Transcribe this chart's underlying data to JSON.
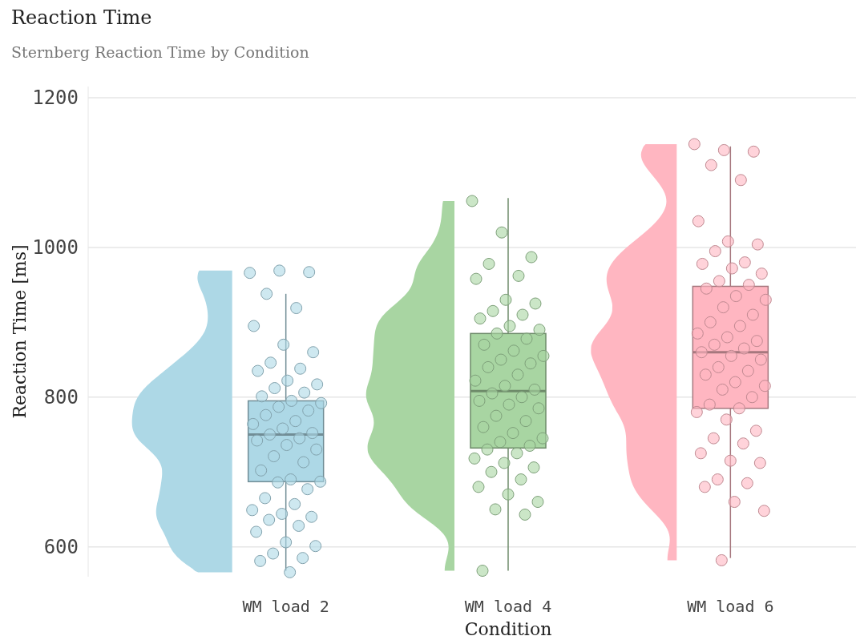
{
  "chart_data": {
    "type": "box",
    "title": "Reaction Time",
    "subtitle": "Sternberg Reaction Time by Condition",
    "xlabel": "Condition",
    "ylabel": "Reaction Time [ms]",
    "categories": [
      "WM load 2",
      "WM load 4",
      "WM load 6"
    ],
    "colors": [
      "#add8e6",
      "#a8d5a2",
      "#ffb6c1"
    ],
    "boxes": [
      {
        "low": 568,
        "q1": 687,
        "median": 750,
        "q3": 795,
        "high": 938
      },
      {
        "low": 568,
        "q1": 732,
        "median": 808,
        "q3": 885,
        "high": 1066
      },
      {
        "low": 585,
        "q1": 785,
        "median": 860,
        "q3": 948,
        "high": 1135
      }
    ],
    "series": [
      {
        "type": "scatter",
        "color": "#add8e6",
        "x": [
          "WM load 2",
          "WM load 2",
          "WM load 2",
          "WM load 2",
          "WM load 2",
          "WM load 2",
          "WM load 2",
          "WM load 2",
          "WM load 2",
          "WM load 2",
          "WM load 2",
          "WM load 2",
          "WM load 2",
          "WM load 2",
          "WM load 2",
          "WM load 2",
          "WM load 2",
          "WM load 2",
          "WM load 2",
          "WM load 2",
          "WM load 2",
          "WM load 2",
          "WM load 2",
          "WM load 2",
          "WM load 2",
          "WM load 2",
          "WM load 2",
          "WM load 2",
          "WM load 2",
          "WM load 2",
          "WM load 2",
          "WM load 2",
          "WM load 2",
          "WM load 2",
          "WM load 2",
          "WM load 2",
          "WM load 2",
          "WM load 2",
          "WM load 2",
          "WM load 2",
          "WM load 2",
          "WM load 2",
          "WM load 2",
          "WM load 2",
          "WM load 2",
          "WM load 2",
          "WM load 2",
          "WM load 2",
          "WM load 2",
          "WM load 2",
          "WM load 2"
        ],
        "values": [
          966,
          969,
          967,
          938,
          919,
          895,
          870,
          860,
          846,
          838,
          835,
          822,
          817,
          812,
          806,
          801,
          795,
          792,
          787,
          782,
          776,
          768,
          764,
          758,
          752,
          750,
          745,
          742,
          736,
          730,
          721,
          713,
          702,
          690,
          687,
          686,
          677,
          665,
          657,
          649,
          644,
          640,
          636,
          628,
          620,
          606,
          601,
          591,
          585,
          581,
          566
        ]
      },
      {
        "type": "scatter",
        "color": "#a8d5a2",
        "x": [
          "WM load 4",
          "WM load 4",
          "WM load 4",
          "WM load 4",
          "WM load 4",
          "WM load 4",
          "WM load 4",
          "WM load 4",
          "WM load 4",
          "WM load 4",
          "WM load 4",
          "WM load 4",
          "WM load 4",
          "WM load 4",
          "WM load 4",
          "WM load 4",
          "WM load 4",
          "WM load 4",
          "WM load 4",
          "WM load 4",
          "WM load 4",
          "WM load 4",
          "WM load 4",
          "WM load 4",
          "WM load 4",
          "WM load 4",
          "WM load 4",
          "WM load 4",
          "WM load 4",
          "WM load 4",
          "WM load 4",
          "WM load 4",
          "WM load 4",
          "WM load 4",
          "WM load 4",
          "WM load 4",
          "WM load 4",
          "WM load 4",
          "WM load 4",
          "WM load 4",
          "WM load 4",
          "WM load 4",
          "WM load 4",
          "WM load 4",
          "WM load 4",
          "WM load 4",
          "WM load 4",
          "WM load 4",
          "WM load 4",
          "WM load 4"
        ],
        "values": [
          1062,
          1020,
          987,
          978,
          962,
          958,
          930,
          925,
          915,
          910,
          905,
          895,
          890,
          885,
          878,
          870,
          862,
          855,
          850,
          845,
          840,
          830,
          822,
          815,
          810,
          805,
          800,
          795,
          790,
          785,
          775,
          768,
          760,
          752,
          745,
          740,
          735,
          730,
          725,
          718,
          712,
          706,
          700,
          690,
          680,
          670,
          660,
          650,
          643,
          568
        ]
      },
      {
        "type": "scatter",
        "color": "#ffb6c1",
        "x": [
          "WM load 6",
          "WM load 6",
          "WM load 6",
          "WM load 6",
          "WM load 6",
          "WM load 6",
          "WM load 6",
          "WM load 6",
          "WM load 6",
          "WM load 6",
          "WM load 6",
          "WM load 6",
          "WM load 6",
          "WM load 6",
          "WM load 6",
          "WM load 6",
          "WM load 6",
          "WM load 6",
          "WM load 6",
          "WM load 6",
          "WM load 6",
          "WM load 6",
          "WM load 6",
          "WM load 6",
          "WM load 6",
          "WM load 6",
          "WM load 6",
          "WM load 6",
          "WM load 6",
          "WM load 6",
          "WM load 6",
          "WM load 6",
          "WM load 6",
          "WM load 6",
          "WM load 6",
          "WM load 6",
          "WM load 6",
          "WM load 6",
          "WM load 6",
          "WM load 6",
          "WM load 6",
          "WM load 6",
          "WM load 6",
          "WM load 6",
          "WM load 6",
          "WM load 6",
          "WM load 6",
          "WM load 6",
          "WM load 6",
          "WM load 6",
          "WM load 6",
          "WM load 6",
          "WM load 6"
        ],
        "values": [
          1138,
          1130,
          1128,
          1110,
          1090,
          1035,
          1008,
          1004,
          995,
          980,
          978,
          972,
          965,
          955,
          950,
          945,
          935,
          930,
          920,
          910,
          900,
          895,
          885,
          880,
          875,
          870,
          865,
          860,
          855,
          850,
          840,
          835,
          830,
          820,
          815,
          810,
          800,
          790,
          785,
          780,
          770,
          755,
          745,
          738,
          725,
          715,
          712,
          690,
          685,
          680,
          660,
          648,
          582
        ]
      }
    ],
    "ylim": [
      560,
      1215
    ],
    "yticks": [
      600,
      800,
      1000,
      1200
    ],
    "grid": "y",
    "marker": "circle"
  }
}
